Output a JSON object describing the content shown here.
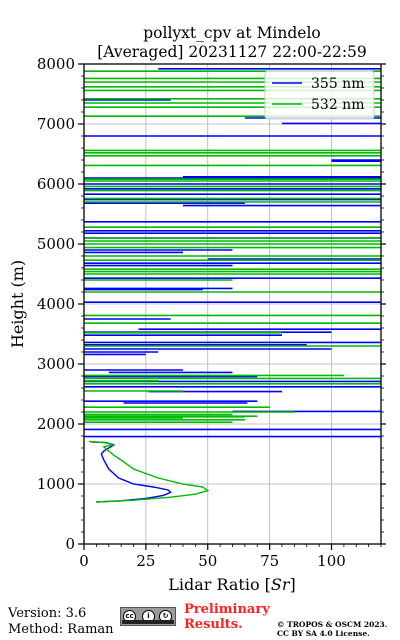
{
  "chart_data": {
    "type": "line",
    "title_line1": "pollyxt_cpv at Mindelo",
    "title_line2": "[Averaged] 20231127 22:00-22:59",
    "xlabel_prefix": "Lidar Ratio [",
    "xlabel_unit": "Sr",
    "xlabel_suffix": "]",
    "ylabel": "Height (m)",
    "xlim": [
      0,
      120
    ],
    "ylim": [
      0,
      8000
    ],
    "xticks": [
      0,
      25,
      50,
      75,
      100
    ],
    "yticks": [
      0,
      1000,
      2000,
      3000,
      4000,
      5000,
      6000,
      7000,
      8000
    ],
    "grid": true,
    "legend_position": "top-right",
    "colors": {
      "355": "#0000ff",
      "532": "#00bb00"
    },
    "series": [
      {
        "name": "355 nm",
        "color": "#0000ff",
        "profile": [
          [
            5,
            700
          ],
          [
            15,
            720
          ],
          [
            25,
            760
          ],
          [
            32,
            810
          ],
          [
            35,
            860
          ],
          [
            34,
            900
          ],
          [
            28,
            950
          ],
          [
            20,
            1000
          ],
          [
            14,
            1100
          ],
          [
            10,
            1250
          ],
          [
            8,
            1400
          ],
          [
            7,
            1500
          ],
          [
            8,
            1550
          ],
          [
            10,
            1600
          ],
          [
            12,
            1650
          ],
          [
            9,
            1690
          ],
          [
            3,
            1700
          ]
        ],
        "segments": [
          [
            0,
            120,
            1790
          ],
          [
            0,
            120,
            1910
          ],
          [
            60,
            120,
            2210
          ],
          [
            16,
            66,
            2350
          ],
          [
            0,
            70,
            2380
          ],
          [
            26,
            80,
            2540
          ],
          [
            0,
            120,
            2620
          ],
          [
            0,
            120,
            2710
          ],
          [
            0,
            70,
            2790
          ],
          [
            10,
            60,
            2860
          ],
          [
            0,
            40,
            2900
          ],
          [
            0,
            25,
            3160
          ],
          [
            0,
            30,
            3200
          ],
          [
            0,
            100,
            3250
          ],
          [
            0,
            90,
            3320
          ],
          [
            0,
            120,
            3360
          ],
          [
            0,
            80,
            3480
          ],
          [
            0,
            100,
            3530
          ],
          [
            22,
            120,
            3580
          ],
          [
            0,
            35,
            3750
          ],
          [
            0,
            120,
            4030
          ],
          [
            0,
            48,
            4240
          ],
          [
            0,
            60,
            4260
          ],
          [
            0,
            120,
            4430
          ],
          [
            0,
            60,
            4640
          ],
          [
            0,
            120,
            4680
          ],
          [
            50,
            120,
            4750
          ],
          [
            0,
            40,
            4860
          ],
          [
            0,
            60,
            4900
          ],
          [
            0,
            120,
            5100
          ],
          [
            0,
            120,
            5180
          ],
          [
            0,
            120,
            5220
          ],
          [
            0,
            120,
            5370
          ],
          [
            40,
            120,
            5640
          ],
          [
            0,
            65,
            5680
          ],
          [
            0,
            120,
            5740
          ],
          [
            0,
            120,
            5830
          ],
          [
            0,
            120,
            5920
          ],
          [
            0,
            120,
            6000
          ],
          [
            0,
            120,
            6100
          ],
          [
            40,
            120,
            6120
          ],
          [
            100,
            120,
            6380
          ],
          [
            100,
            120,
            6400
          ],
          [
            0,
            120,
            6800
          ],
          [
            80,
            120,
            7010
          ],
          [
            65,
            120,
            7100
          ],
          [
            0,
            35,
            7400
          ],
          [
            30,
            120,
            7920
          ]
        ]
      },
      {
        "name": "532 nm",
        "color": "#00bb00",
        "profile": [
          [
            5,
            700
          ],
          [
            20,
            730
          ],
          [
            35,
            780
          ],
          [
            45,
            830
          ],
          [
            50,
            890
          ],
          [
            48,
            950
          ],
          [
            40,
            1000
          ],
          [
            30,
            1100
          ],
          [
            20,
            1250
          ],
          [
            15,
            1400
          ],
          [
            12,
            1480
          ],
          [
            10,
            1550
          ],
          [
            8,
            1620
          ],
          [
            12,
            1660
          ],
          [
            8,
            1690
          ],
          [
            2,
            1710
          ]
        ],
        "segments": [
          [
            0,
            60,
            2030
          ],
          [
            0,
            65,
            2070
          ],
          [
            0,
            40,
            2100
          ],
          [
            0,
            65,
            2120
          ],
          [
            0,
            70,
            2130
          ],
          [
            0,
            60,
            2160
          ],
          [
            0,
            85,
            2200
          ],
          [
            0,
            75,
            2280
          ],
          [
            0,
            40,
            2550
          ],
          [
            0,
            120,
            2670
          ],
          [
            0,
            30,
            2720
          ],
          [
            0,
            120,
            2760
          ],
          [
            0,
            105,
            2810
          ],
          [
            0,
            120,
            3300
          ],
          [
            0,
            80,
            3520
          ],
          [
            0,
            120,
            3680
          ],
          [
            0,
            120,
            3810
          ],
          [
            0,
            120,
            4200
          ],
          [
            0,
            60,
            4400
          ],
          [
            0,
            120,
            4500
          ],
          [
            0,
            120,
            4540
          ],
          [
            0,
            120,
            4580
          ],
          [
            0,
            120,
            4730
          ],
          [
            0,
            120,
            4800
          ],
          [
            0,
            120,
            4940
          ],
          [
            0,
            120,
            5000
          ],
          [
            0,
            120,
            5050
          ],
          [
            0,
            120,
            5100
          ],
          [
            0,
            120,
            5280
          ],
          [
            0,
            120,
            5700
          ],
          [
            0,
            120,
            5760
          ],
          [
            0,
            120,
            5890
          ],
          [
            0,
            120,
            5960
          ],
          [
            0,
            120,
            6050
          ],
          [
            0,
            120,
            6080
          ],
          [
            0,
            120,
            6310
          ],
          [
            0,
            120,
            6470
          ],
          [
            0,
            120,
            6520
          ],
          [
            0,
            120,
            6560
          ],
          [
            0,
            120,
            7130
          ],
          [
            0,
            120,
            7280
          ],
          [
            0,
            120,
            7350
          ],
          [
            0,
            120,
            7420
          ],
          [
            0,
            120,
            7560
          ],
          [
            0,
            120,
            7620
          ],
          [
            0,
            120,
            7700
          ],
          [
            0,
            120,
            7760
          ],
          [
            0,
            120,
            7880
          ]
        ]
      }
    ]
  },
  "footer": {
    "version": "Version: 3.6",
    "method": "Method: Raman",
    "cc_label": "CC BY SA",
    "preliminary_line1": "Preliminary",
    "preliminary_line2": "Results.",
    "copyright_line1": "© TROPOS & OSCM 2023.",
    "copyright_line2": "CC BY SA 4.0 License."
  }
}
